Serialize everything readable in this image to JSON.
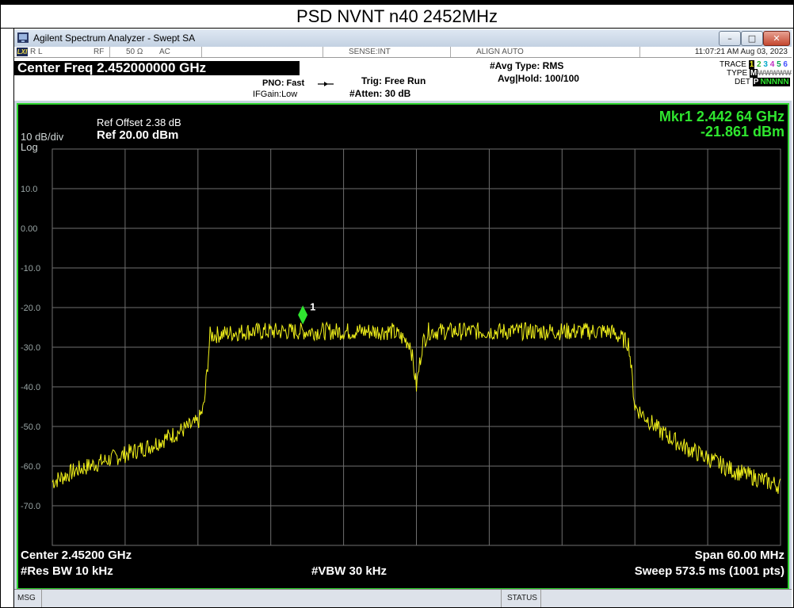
{
  "page": {
    "title": "PSD NVNT n40 2452MHz"
  },
  "window": {
    "title": "Agilent Spectrum Analyzer - Swept SA",
    "buttons": {
      "minimize": "–",
      "maximize": "□",
      "close": "✕"
    }
  },
  "status_bar": {
    "lxi": "LXI",
    "rl": "R L",
    "rf": "RF",
    "impedance": "50 Ω",
    "coupling": "AC",
    "sense": "SENSE:INT",
    "align": "ALIGN AUTO",
    "datetime": "11:07:21 AM Aug 03, 2023"
  },
  "settings": {
    "center_freq": "Center Freq 2.452000000 GHz",
    "pno": "PNO: Fast",
    "ifgain": "IFGain:Low",
    "trig": "Trig: Free Run",
    "atten": "#Atten: 30 dB",
    "avg_type": "#Avg Type: RMS",
    "avg_hold": "Avg|Hold: 100/100",
    "trace_label": "TRACE",
    "trace_nums": [
      "1",
      "2",
      "3",
      "4",
      "5",
      "6"
    ],
    "type_label": "TYPE",
    "type_value": "M",
    "type_rest": "WWWWW",
    "det_label": "DET",
    "det_value": "P",
    "det_rest": "NNNNN"
  },
  "screen": {
    "ref_offset": "Ref Offset 2.38 dB",
    "scale": "10 dB/div",
    "ref_level": "Ref 20.00 dBm",
    "log": "Log",
    "marker_freq": "Mkr1 2.442 64 GHz",
    "marker_amp": "-21.861 dBm",
    "marker_label": "1",
    "center": "Center 2.45200 GHz",
    "span": "Span 60.00 MHz",
    "rbw": "#Res BW 10 kHz",
    "vbw": "#VBW 30 kHz",
    "sweep": "Sweep  573.5 ms (1001 pts)",
    "y_ticks": [
      "10.0",
      "0.00",
      "-10.0",
      "-20.0",
      "-30.0",
      "-40.0",
      "-50.0",
      "-60.0",
      "-70.0"
    ]
  },
  "bottom_bar": {
    "msg": "MSG",
    "status": "STATUS"
  },
  "colors": {
    "trace": "#f2f21a",
    "marker": "#2fe62f",
    "grid": "#6f6f6f",
    "frame": "#2fd52f"
  },
  "chart_data": {
    "type": "line",
    "title": "",
    "xlabel": "",
    "ylabel": "",
    "x_unit": "GHz",
    "xlim": [
      2.422,
      2.482
    ],
    "ylim": [
      -80,
      20
    ],
    "grid": true,
    "series": [
      {
        "x": [
          2.422,
          2.424,
          2.426,
          2.428,
          2.43,
          2.432,
          2.434,
          2.4345,
          2.435,
          2.438,
          2.442,
          2.446,
          2.45,
          2.4515,
          2.452,
          2.4525,
          2.453,
          2.456,
          2.46,
          2.464,
          2.468,
          2.4695,
          2.47,
          2.472,
          2.474,
          2.476,
          2.478,
          2.48,
          2.482
        ],
        "y": [
          -64,
          -61,
          -59,
          -57,
          -55,
          -52,
          -49,
          -45,
          -27,
          -26,
          -26,
          -26,
          -26,
          -29,
          -40,
          -29,
          -26,
          -26,
          -26,
          -26,
          -26,
          -29,
          -45,
          -51,
          -55,
          -58,
          -61,
          -63,
          -65
        ]
      }
    ],
    "markers": [
      {
        "label": "1",
        "x": 2.44264,
        "y": -21.861
      }
    ]
  }
}
